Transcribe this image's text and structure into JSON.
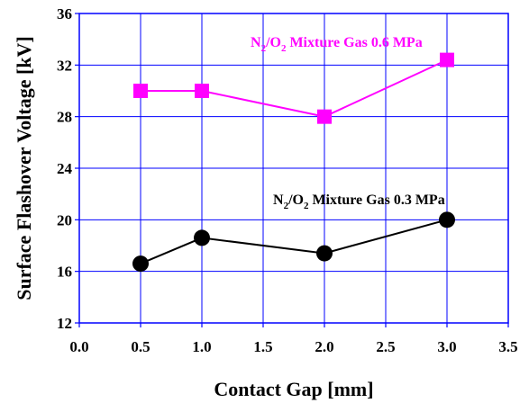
{
  "chart_data": {
    "type": "line",
    "xlabel": "Contact Gap [mm]",
    "ylabel": "Surface Flashover Voltage [kV]",
    "xlim": [
      0.0,
      3.5
    ],
    "ylim": [
      12,
      36
    ],
    "xticks": [
      "0.0",
      "0.5",
      "1.0",
      "1.5",
      "2.0",
      "2.5",
      "3.0",
      "3.5"
    ],
    "yticks": [
      "12",
      "16",
      "20",
      "24",
      "28",
      "32",
      "36"
    ],
    "grid": true,
    "series": [
      {
        "name_parts": [
          "N",
          "2",
          "/O",
          "2",
          " Mixture Gas 0.6 MPa"
        ],
        "color": "#ff00ff",
        "marker": "square",
        "x": [
          0.5,
          1.0,
          2.0,
          3.0
        ],
        "y": [
          30.0,
          30.0,
          28.0,
          32.4
        ]
      },
      {
        "name_parts": [
          "N",
          "2",
          "/O",
          "2",
          " Mixture Gas 0.3 MPa"
        ],
        "color": "#000000",
        "marker": "circle",
        "x": [
          0.5,
          1.0,
          2.0,
          3.0
        ],
        "y": [
          16.6,
          18.6,
          17.4,
          20.0
        ]
      }
    ]
  },
  "colors": {
    "grid": "#0000ff",
    "axis": "#0000ff"
  }
}
